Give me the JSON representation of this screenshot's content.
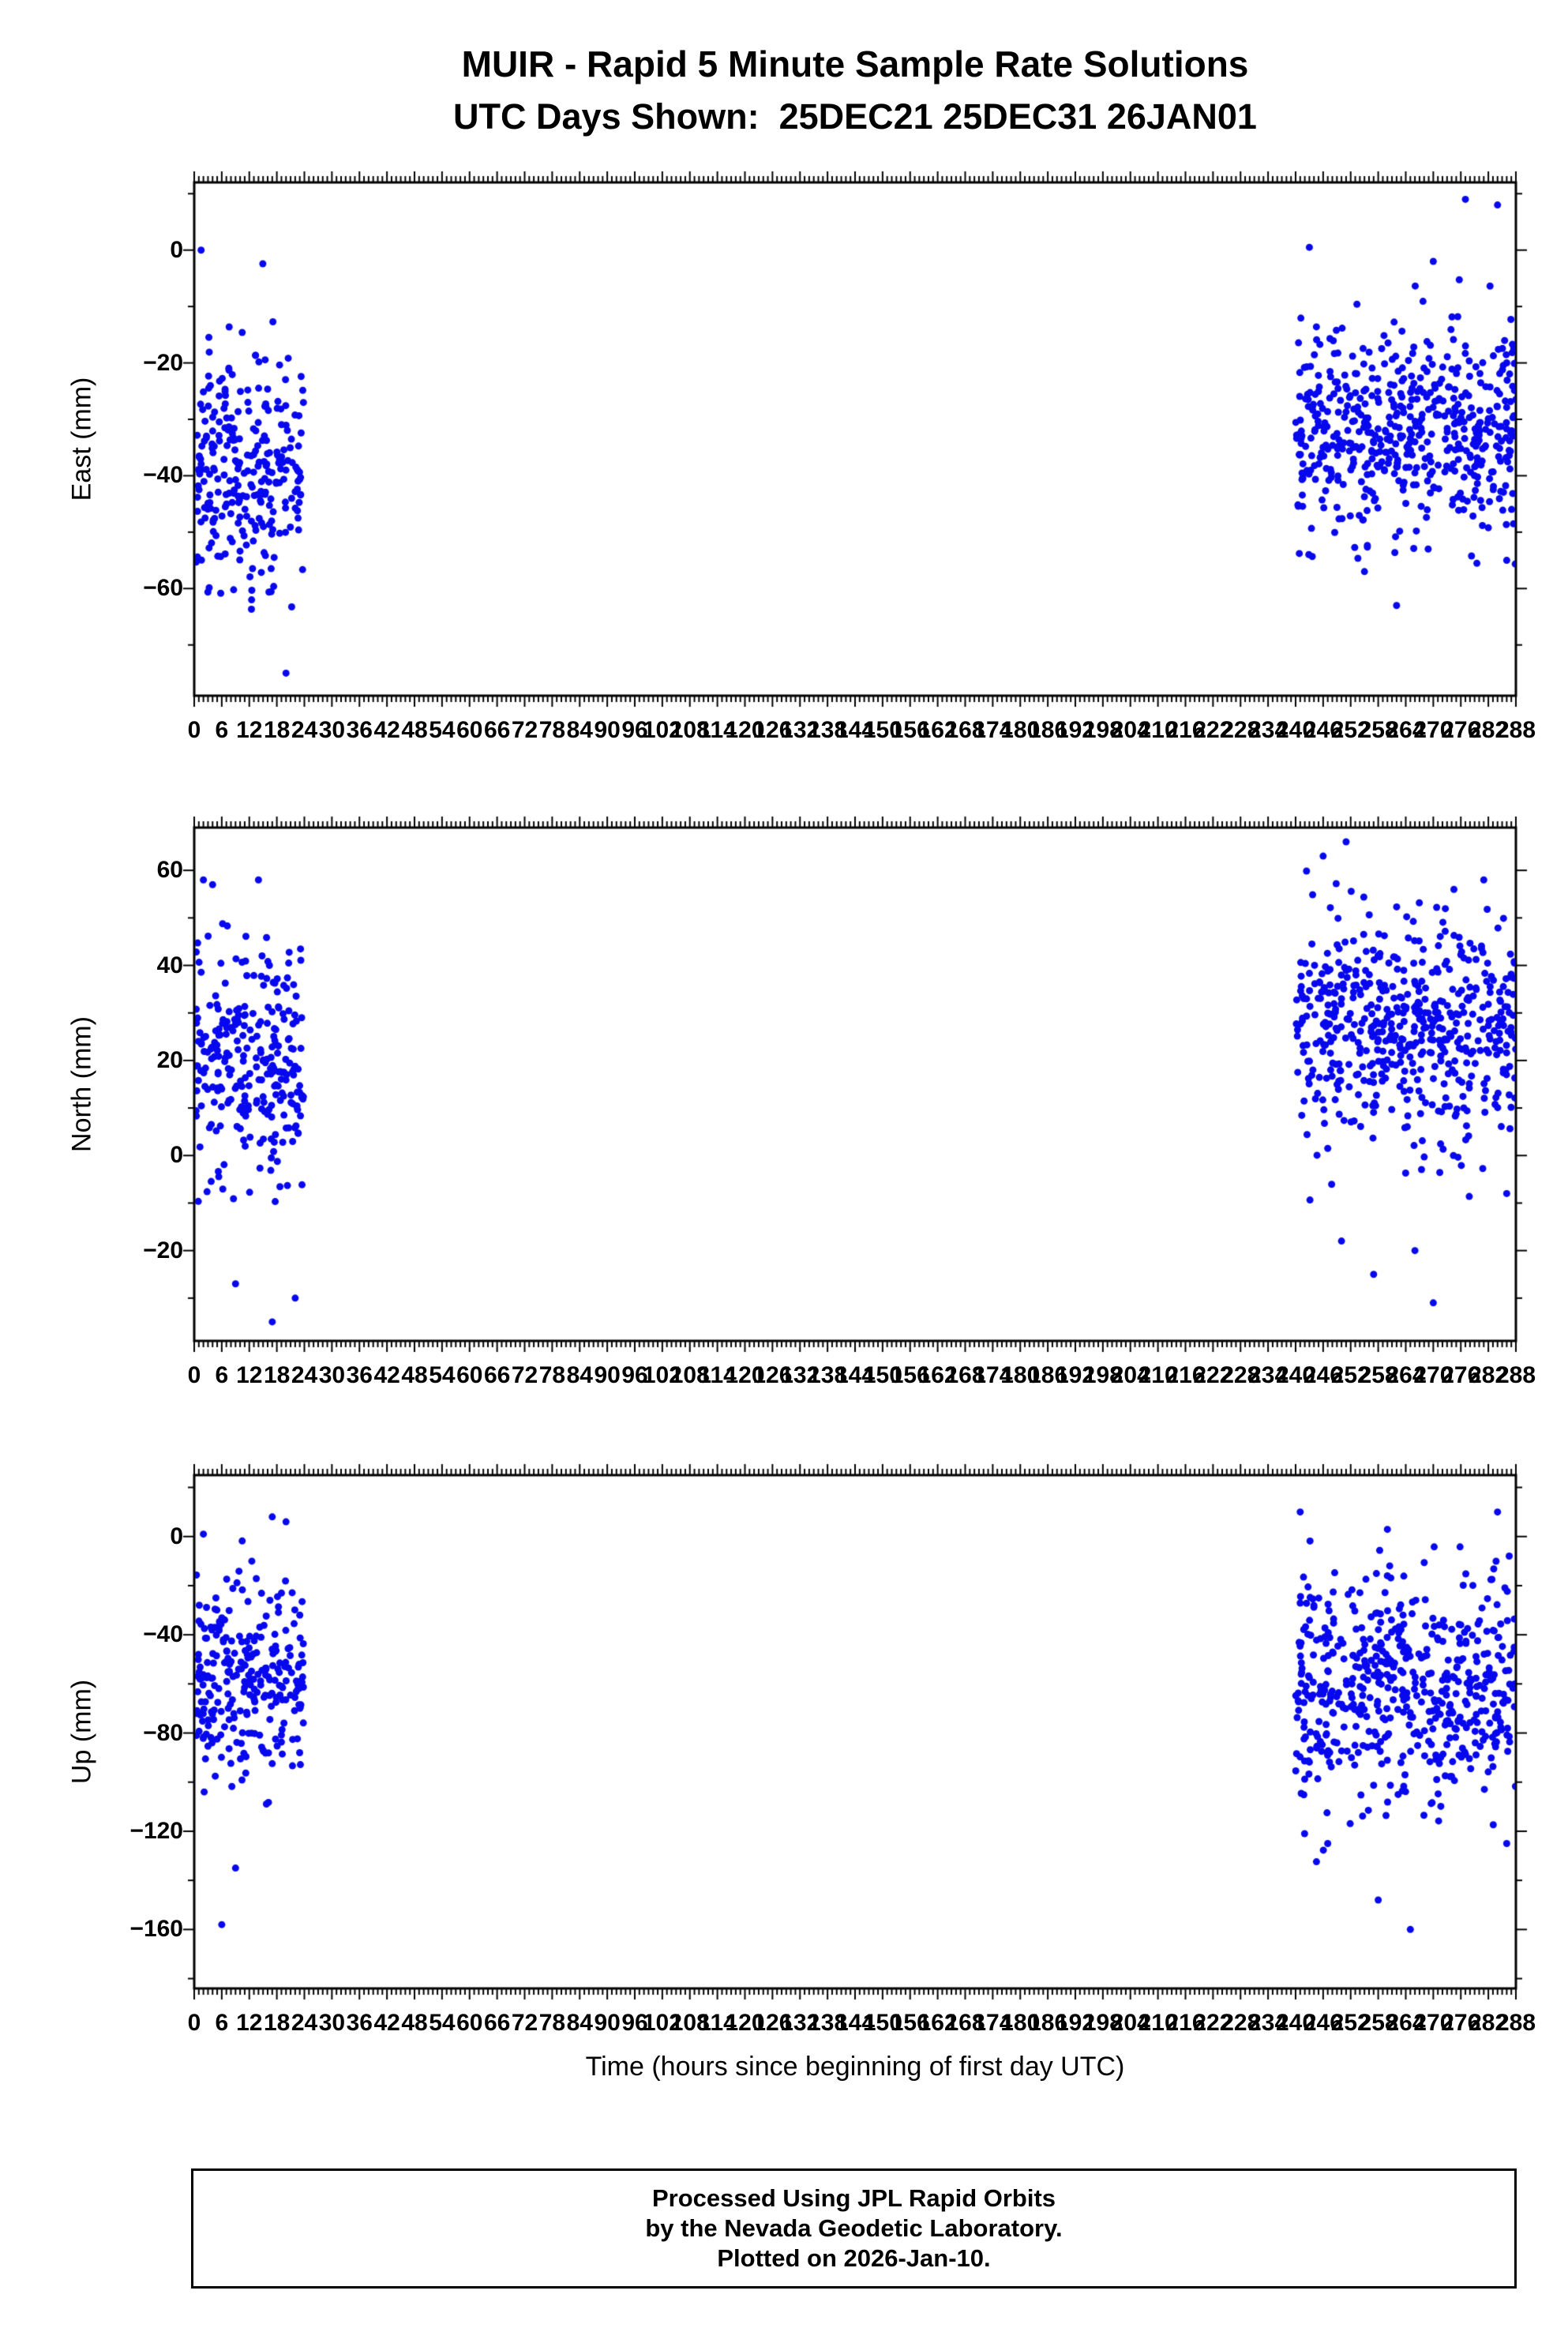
{
  "page_title": "MUIR - Rapid 5 Minute Sample Rate Solutions",
  "subtitle": "UTC Days Shown:  25DEC21 25DEC31 26JAN01",
  "point_color": "#0808ee",
  "axis_color": "#000000",
  "x_axis": {
    "label": "Time (hours since beginning of first day UTC)",
    "min": 0,
    "max": 288,
    "major_step": 6,
    "minor_step": 1
  },
  "footer": {
    "line1": "Processed Using JPL Rapid Orbits",
    "line2": "by the Nevada Geodetic Laboratory.",
    "line3": "Plotted on 2026-Jan-10."
  },
  "chart_data": [
    {
      "type": "scatter",
      "ylabel": "East (mm)",
      "ylim": [
        -79,
        12
      ],
      "yticks": [
        0,
        -20,
        -40,
        -60
      ],
      "y_minor_step": 10,
      "legend": "none",
      "grid": false,
      "clusters": [
        {
          "x_range": [
            0.4,
            23.8
          ],
          "count": 270,
          "mean": -38,
          "std": 11,
          "y_min": -66,
          "y_max": 1,
          "seed": 101
        },
        {
          "x_range": [
            240,
            288
          ],
          "count": 540,
          "mean": -32,
          "std": 9.5,
          "y_min": -58,
          "y_max": -2,
          "seed": 102
        }
      ],
      "extra_points": [
        [
          1.5,
          0
        ],
        [
          20,
          -75
        ],
        [
          12.5,
          -62
        ],
        [
          277,
          9
        ],
        [
          284,
          8
        ],
        [
          243,
          0.5
        ],
        [
          262,
          -63
        ],
        [
          270,
          -2
        ],
        [
          286,
          -55
        ],
        [
          255,
          -57
        ]
      ]
    },
    {
      "type": "scatter",
      "ylabel": "North (mm)",
      "ylim": [
        -39,
        69
      ],
      "yticks": [
        60,
        40,
        20,
        0,
        -20
      ],
      "y_minor_step": 10,
      "legend": "none",
      "grid": false,
      "clusters": [
        {
          "x_range": [
            0.4,
            23.8
          ],
          "count": 270,
          "mean": 20,
          "std": 12,
          "y_min": -20,
          "y_max": 57,
          "seed": 201
        },
        {
          "x_range": [
            240,
            288
          ],
          "count": 540,
          "mean": 27,
          "std": 12,
          "y_min": -12,
          "y_max": 60,
          "seed": 202
        }
      ],
      "extra_points": [
        [
          9,
          -27
        ],
        [
          17,
          -35
        ],
        [
          22,
          -30
        ],
        [
          14,
          58
        ],
        [
          4,
          57
        ],
        [
          2,
          58
        ],
        [
          246,
          63
        ],
        [
          251,
          66
        ],
        [
          257,
          -25
        ],
        [
          270,
          -31
        ],
        [
          286,
          -8
        ],
        [
          281,
          58
        ],
        [
          266,
          -20
        ],
        [
          250,
          -18
        ]
      ]
    },
    {
      "type": "scatter",
      "ylabel": "Up (mm)",
      "ylim": [
        -184,
        25
      ],
      "yticks": [
        0,
        -40,
        -80,
        -120,
        -160
      ],
      "y_minor_step": 20,
      "legend": "none",
      "grid": false,
      "clusters": [
        {
          "x_range": [
            0.4,
            23.8
          ],
          "count": 270,
          "mean": -55,
          "std": 22,
          "y_min": -125,
          "y_max": 5,
          "seed": 301
        },
        {
          "x_range": [
            240,
            288
          ],
          "count": 540,
          "mean": -62,
          "std": 24,
          "y_min": -135,
          "y_max": 5,
          "seed": 302
        }
      ],
      "extra_points": [
        [
          6,
          -158
        ],
        [
          9,
          -135
        ],
        [
          17,
          8
        ],
        [
          20,
          6
        ],
        [
          2,
          1
        ],
        [
          241,
          10
        ],
        [
          265,
          -160
        ],
        [
          247,
          -125
        ],
        [
          286,
          -125
        ],
        [
          258,
          -148
        ],
        [
          284,
          10
        ]
      ]
    }
  ]
}
